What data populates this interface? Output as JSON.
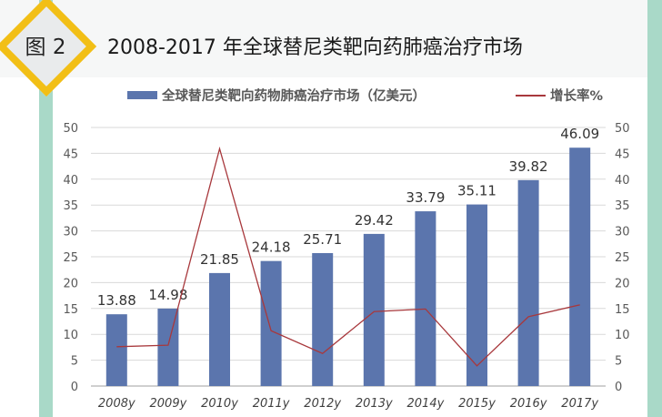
{
  "figure": {
    "label": "图 2",
    "title": "2008-2017 年全球替尼类靶向药肺癌治疗市场"
  },
  "colors": {
    "bar": "#5b75ad",
    "line": "#a8383c",
    "strip": "#a9d9c8",
    "diamond_border": "#f2bf16",
    "header_bg": "#f6f7f7",
    "grid": "#d9d9d9"
  },
  "legend": {
    "bar_label": "全球替尼类靶向药物肺癌治疗市场（亿美元）",
    "line_label": "增长率%"
  },
  "chart_data": {
    "type": "bar+line",
    "title": "2008-2017 年全球替尼类靶向药肺癌治疗市场",
    "categories": [
      "2008y",
      "2009y",
      "2010y",
      "2011y",
      "2012y",
      "2013y",
      "2014y",
      "2015y",
      "2016y",
      "2017y"
    ],
    "series": [
      {
        "name": "全球替尼类靶向药物肺癌治疗市场（亿美元）",
        "type": "bar",
        "axis": "left",
        "values": [
          13.88,
          14.98,
          21.85,
          24.18,
          25.71,
          29.42,
          33.79,
          35.11,
          39.82,
          46.09
        ],
        "data_labels": [
          "13.88",
          "14.98",
          "21.85",
          "24.18",
          "25.71",
          "29.42",
          "33.79",
          "35.11",
          "39.82",
          "46.09"
        ]
      },
      {
        "name": "增长率%",
        "type": "line",
        "axis": "right",
        "values": [
          7.6,
          7.9,
          45.9,
          10.7,
          6.3,
          14.4,
          14.9,
          3.9,
          13.4,
          15.7
        ]
      }
    ],
    "y_left": {
      "min": 0,
      "max": 50,
      "ticks": [
        "0",
        "5",
        "10",
        "15",
        "20",
        "25",
        "30",
        "35",
        "40",
        "45",
        "50"
      ]
    },
    "y_right": {
      "min": 0,
      "max": 50,
      "ticks": [
        "0",
        "5",
        "10",
        "15",
        "20",
        "25",
        "30",
        "35",
        "40",
        "45",
        "50"
      ]
    },
    "xlabel": "",
    "ylabel": "",
    "grid": true,
    "legend_position": "top"
  }
}
